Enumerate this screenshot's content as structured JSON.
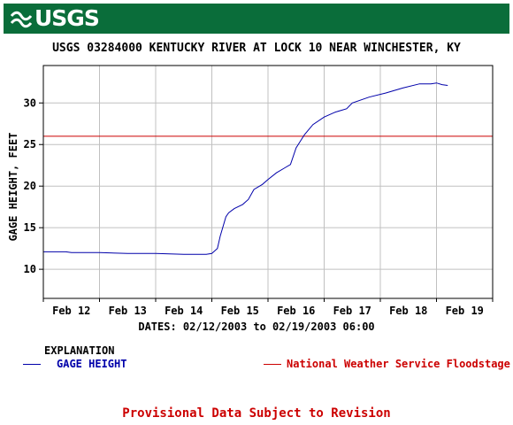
{
  "header": {
    "logo_text": "USGS"
  },
  "chart_data": {
    "type": "line",
    "title": "USGS 03284000 KENTUCKY RIVER AT LOCK 10 NEAR WINCHESTER, KY",
    "ylabel": "GAGE HEIGHT, FEET",
    "xlabel": "DATES: 02/12/2003 to 02/19/2003 06:00",
    "x_unit": "days",
    "x_ticks": [
      {
        "x": 0.5,
        "label": "Feb 12"
      },
      {
        "x": 1.5,
        "label": "Feb 13"
      },
      {
        "x": 2.5,
        "label": "Feb 14"
      },
      {
        "x": 3.5,
        "label": "Feb 15"
      },
      {
        "x": 4.5,
        "label": "Feb 16"
      },
      {
        "x": 5.5,
        "label": "Feb 17"
      },
      {
        "x": 6.5,
        "label": "Feb 18"
      },
      {
        "x": 7.5,
        "label": "Feb 19"
      }
    ],
    "xlim": [
      0,
      8
    ],
    "ylim": [
      6.5,
      34.5
    ],
    "y_ticks": [
      10,
      15,
      20,
      25,
      30
    ],
    "grid": true,
    "series": [
      {
        "name": "GAGE HEIGHT",
        "color": "#0000aa",
        "x": [
          0.0,
          0.4,
          0.5,
          1.0,
          1.5,
          2.0,
          2.5,
          2.9,
          3.0,
          3.1,
          3.15,
          3.25,
          3.3,
          3.4,
          3.55,
          3.65,
          3.75,
          3.9,
          4.0,
          4.15,
          4.3,
          4.4,
          4.5,
          4.65,
          4.8,
          5.0,
          5.2,
          5.4,
          5.5,
          5.8,
          6.1,
          6.4,
          6.7,
          6.9,
          7.0,
          7.1,
          7.2
        ],
        "y": [
          12.1,
          12.1,
          12.0,
          12.0,
          11.9,
          11.9,
          11.8,
          11.8,
          11.9,
          12.5,
          14.0,
          16.3,
          16.8,
          17.3,
          17.8,
          18.4,
          19.6,
          20.2,
          20.8,
          21.6,
          22.2,
          22.6,
          24.6,
          26.2,
          27.4,
          28.3,
          28.9,
          29.3,
          30.0,
          30.7,
          31.2,
          31.8,
          32.3,
          32.3,
          32.4,
          32.2,
          32.1
        ]
      }
    ],
    "reference_lines": [
      {
        "name": "National Weather Service Floodstage",
        "y": 26.0,
        "color": "#cc0000"
      }
    ],
    "legend_title": "EXPLANATION",
    "legend_position": "bottom"
  },
  "footer": {
    "provisional": "Provisional Data Subject to Revision"
  }
}
